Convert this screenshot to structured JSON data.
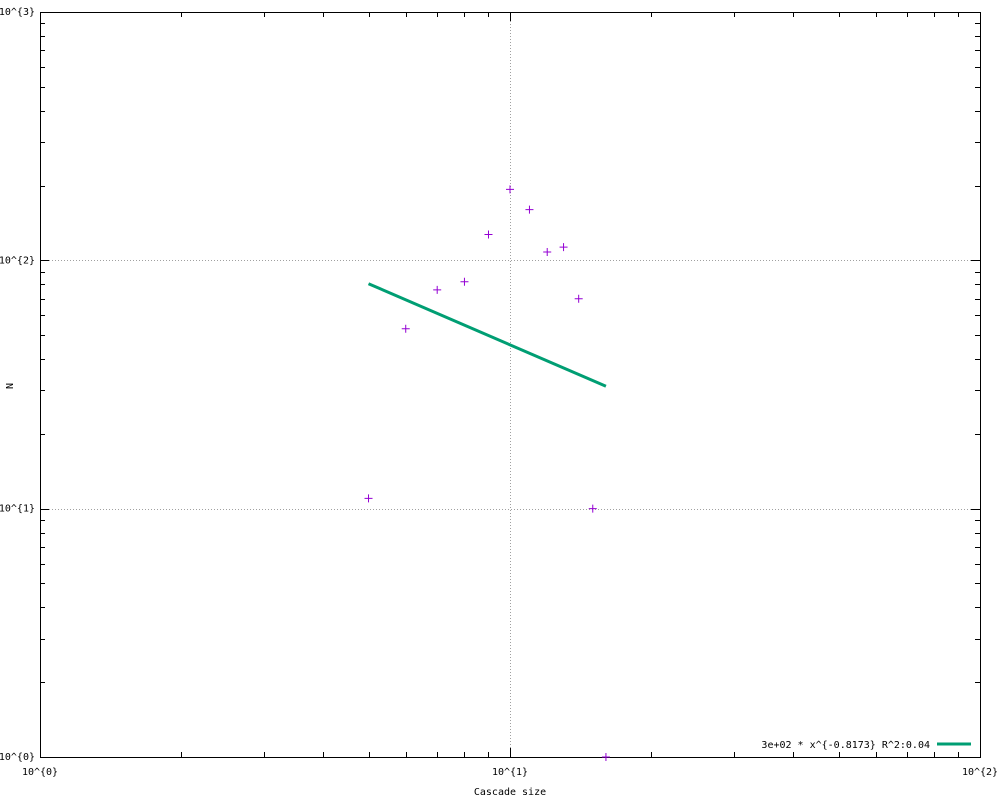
{
  "colors": {
    "points": "#9400d3",
    "fit_line": "#009e73",
    "grid": "#a0a0a0",
    "frame": "#000000"
  },
  "chart_data": {
    "type": "scatter",
    "xlabel": "Cascade size",
    "ylabel": "N",
    "xscale": "log",
    "yscale": "log",
    "xlim": [
      1,
      100
    ],
    "ylim": [
      1,
      1000
    ],
    "grid": true,
    "legend_position": "bottom-right",
    "x_tick_labels": [
      "10^{0}",
      "10^{1}",
      "10^{2}"
    ],
    "y_tick_labels": [
      "10^{0}",
      "10^{1}",
      "10^{2}",
      "10^{3}"
    ],
    "series": [
      {
        "kind": "points",
        "marker": "+",
        "points": [
          {
            "x": 5,
            "y": 11
          },
          {
            "x": 6,
            "y": 53
          },
          {
            "x": 7,
            "y": 76
          },
          {
            "x": 8,
            "y": 82
          },
          {
            "x": 9,
            "y": 127
          },
          {
            "x": 10,
            "y": 193
          },
          {
            "x": 11,
            "y": 160
          },
          {
            "x": 12,
            "y": 108
          },
          {
            "x": 13,
            "y": 113
          },
          {
            "x": 14,
            "y": 70
          },
          {
            "x": 15,
            "y": 10
          },
          {
            "x": 16,
            "y": 1
          }
        ]
      },
      {
        "kind": "fit",
        "name": "3e+02 * x^{-0.8173}  R^2:0.04",
        "coefficient": 300,
        "exponent": -0.8173,
        "x_range": [
          5,
          16
        ]
      }
    ]
  }
}
